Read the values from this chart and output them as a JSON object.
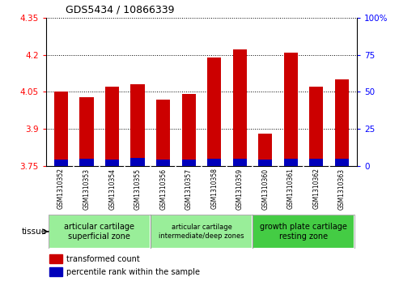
{
  "title": "GDS5434 / 10866339",
  "samples": [
    "GSM1310352",
    "GSM1310353",
    "GSM1310354",
    "GSM1310355",
    "GSM1310356",
    "GSM1310357",
    "GSM1310358",
    "GSM1310359",
    "GSM1310360",
    "GSM1310361",
    "GSM1310362",
    "GSM1310363"
  ],
  "red_values": [
    4.05,
    4.03,
    4.07,
    4.08,
    4.02,
    4.04,
    4.19,
    4.22,
    3.88,
    4.21,
    4.07,
    4.1
  ],
  "blue_values": [
    0.027,
    0.03,
    0.028,
    0.032,
    0.028,
    0.028,
    0.03,
    0.03,
    0.026,
    0.03,
    0.03,
    0.03
  ],
  "y_min": 3.75,
  "y_max": 4.35,
  "y_ticks": [
    3.75,
    3.9,
    4.05,
    4.2,
    4.35
  ],
  "y2_labels": [
    "0",
    "25",
    "50",
    "75",
    "100%"
  ],
  "red_color": "#cc0000",
  "blue_color": "#0000bb",
  "bar_width": 0.55,
  "sample_bg_color": "#cccccc",
  "group1_color": "#99ee99",
  "group2_color": "#99ee99",
  "group3_color": "#44cc44",
  "tissue_label": "tissue",
  "legend_red": "transformed count",
  "legend_blue": "percentile rank within the sample",
  "group_labels": [
    "articular cartilage\nsuperficial zone",
    "articular cartilage\nintermediate/deep zones",
    "growth plate cartilage\nresting zone"
  ],
  "group_ranges": [
    [
      0,
      4
    ],
    [
      4,
      8
    ],
    [
      8,
      12
    ]
  ]
}
